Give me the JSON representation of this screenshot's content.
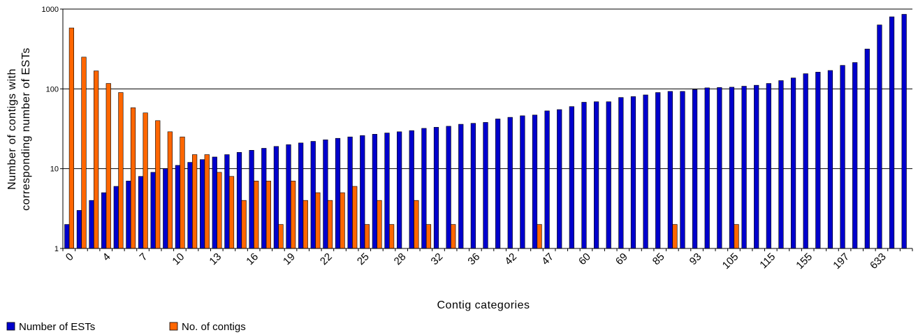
{
  "chart_data": {
    "type": "bar",
    "ylabel": [
      "Number of contigs with",
      "corresponding number of ESTs"
    ],
    "xlabel": "Contig categories",
    "yscale": "log",
    "ylim": [
      1,
      1000
    ],
    "yticks": [
      1,
      10,
      100,
      1000
    ],
    "grid": "horizontal major",
    "legend_position": "bottom-left",
    "x_tick_labels": [
      "0",
      "4",
      "7",
      "10",
      "13",
      "16",
      "19",
      "22",
      "25",
      "28",
      "32",
      "36",
      "42",
      "47",
      "60",
      "69",
      "85",
      "93",
      "105",
      "115",
      "155",
      "197",
      "633"
    ],
    "series": [
      {
        "name": "Number of ESTs",
        "color": "#0000cc",
        "values": [
          2,
          3,
          4,
          5,
          6,
          7,
          8,
          9,
          10,
          11,
          12,
          13,
          14,
          15,
          16,
          17,
          18,
          19,
          20,
          21,
          22,
          23,
          24,
          25,
          26,
          27,
          28,
          29,
          30,
          32,
          33,
          34,
          36,
          37,
          38,
          42,
          44,
          46,
          47,
          53,
          55,
          60,
          68,
          69,
          69,
          78,
          80,
          84,
          90,
          93,
          93,
          98,
          103,
          104,
          105,
          108,
          111,
          117,
          127,
          137,
          155,
          162,
          170,
          197,
          214,
          316,
          633,
          800,
          860
        ]
      },
      {
        "name": "No. of contigs",
        "color": "#ff6600",
        "values": [
          580,
          250,
          168,
          117,
          90,
          58,
          50,
          40,
          29,
          25,
          15,
          15,
          9,
          8,
          4,
          7,
          7,
          2,
          7,
          4,
          5,
          4,
          5,
          6,
          2,
          4,
          2,
          null,
          4,
          2,
          null,
          2,
          null,
          null,
          null,
          null,
          null,
          null,
          2,
          null,
          null,
          null,
          null,
          null,
          null,
          null,
          null,
          null,
          null,
          2,
          null,
          null,
          null,
          null,
          2,
          null,
          null,
          null,
          null,
          null,
          null,
          null,
          null,
          null,
          null,
          null,
          null,
          null,
          null
        ]
      }
    ]
  }
}
